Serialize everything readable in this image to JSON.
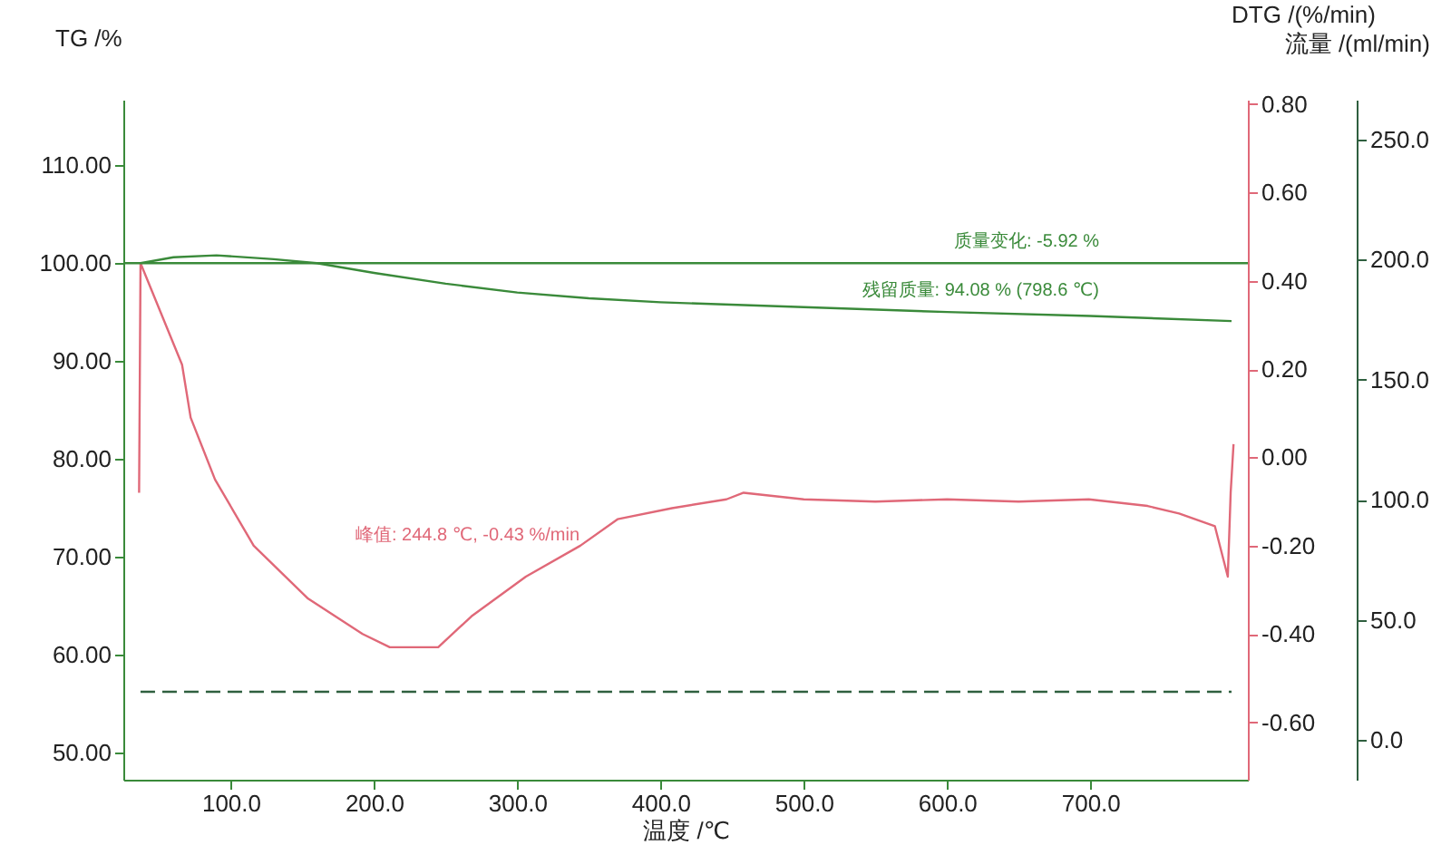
{
  "chart_data": {
    "type": "line",
    "xlabel": "温度 /℃",
    "ylabel": "TG /%",
    "y2label": "DTG /(%/min)",
    "y3label": "流量 /(ml/min)",
    "xlim": [
      25,
      810
    ],
    "xticks": [
      {
        "value": 100,
        "label": "100.0"
      },
      {
        "value": 200,
        "label": "200.0"
      },
      {
        "value": 300,
        "label": "300.0"
      },
      {
        "value": 400,
        "label": "400.0"
      },
      {
        "value": 500,
        "label": "500.0"
      },
      {
        "value": 600,
        "label": "600.0"
      },
      {
        "value": 700,
        "label": "700.0"
      }
    ],
    "ylim": [
      47.2,
      116.7
    ],
    "yticks": [
      {
        "value": 50,
        "label": "50.00"
      },
      {
        "value": 60,
        "label": "60.00"
      },
      {
        "value": 70,
        "label": "70.00"
      },
      {
        "value": 80,
        "label": "80.00"
      },
      {
        "value": 90,
        "label": "90.00"
      },
      {
        "value": 100,
        "label": "100.00"
      },
      {
        "value": 110,
        "label": "110.00"
      }
    ],
    "y2lim": [
      -0.73,
      0.81
    ],
    "y2ticks": [
      {
        "value": -0.6,
        "label": "-0.60"
      },
      {
        "value": -0.4,
        "label": "-0.40"
      },
      {
        "value": -0.2,
        "label": "-0.20"
      },
      {
        "value": 0,
        "label": "0.00"
      },
      {
        "value": 0.2,
        "label": "0.20"
      },
      {
        "value": 0.4,
        "label": "0.40"
      },
      {
        "value": 0.6,
        "label": "0.60"
      },
      {
        "value": 0.8,
        "label": "0.80"
      }
    ],
    "y3lim": [
      -16.6,
      266.6
    ],
    "y3ticks": [
      {
        "value": 0,
        "label": "0.0"
      },
      {
        "value": 50,
        "label": "50.0"
      },
      {
        "value": 100,
        "label": "100.0"
      },
      {
        "value": 150,
        "label": "150.0"
      },
      {
        "value": 200,
        "label": "200.0"
      },
      {
        "value": 250,
        "label": "250.0"
      }
    ],
    "series": [
      {
        "color": "#3a8a3a",
        "axis": "y",
        "x": [
          37,
          60,
          90,
          130,
          160,
          200,
          250,
          300,
          350,
          400,
          500,
          600,
          700,
          798.6
        ],
        "values": [
          100,
          100.6,
          100.8,
          100.4,
          100,
          99.0,
          97.9,
          97.0,
          96.4,
          96.0,
          95.5,
          95.0,
          94.6,
          94.08
        ]
      },
      {
        "color": "#e06878",
        "axis": "y2",
        "x": [
          36,
          37,
          66,
          72,
          89,
          116,
          154,
          192,
          211,
          244.8,
          268,
          306,
          344,
          370,
          408,
          446,
          458,
          500,
          550,
          600,
          650,
          699,
          740,
          762,
          787,
          796,
          798,
          800
        ],
        "values": [
          -0.08,
          0.44,
          0.21,
          0.09,
          -0.05,
          -0.2,
          -0.32,
          -0.4,
          -0.43,
          -0.43,
          -0.36,
          -0.27,
          -0.2,
          -0.14,
          -0.115,
          -0.095,
          -0.08,
          -0.095,
          -0.1,
          -0.095,
          -0.1,
          -0.095,
          -0.11,
          -0.127,
          -0.156,
          -0.27,
          -0.08,
          0.03
        ]
      },
      {
        "color": "#2f5f3f",
        "axis": "y3",
        "line_style": "dashed",
        "x": [
          37,
          798.6
        ],
        "values": [
          20,
          20
        ]
      }
    ],
    "ref_lines": [
      {
        "axis": "y",
        "value": 100,
        "color": "#3a8a3a"
      }
    ],
    "annotations": [
      "峰值: 244.8 ℃, -0.43 %/min",
      "质量变化: -5.92 %",
      "残留质量: 94.08 % (798.6 ℃)"
    ],
    "grid": false
  }
}
